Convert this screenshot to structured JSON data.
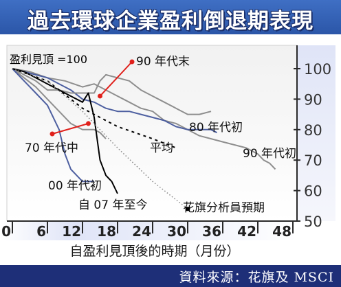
{
  "title": "過去環球企業盈利倒退期表現",
  "source": "資料來源：花旗及 MSCI",
  "chart_data": {
    "type": "line",
    "xlabel": "自盈利見頂後的時期（月份）",
    "ylabel": "",
    "y_note": "盈利見頂 =100",
    "xlim": [
      0,
      48
    ],
    "ylim": [
      50,
      100
    ],
    "xticks": [
      0,
      6,
      12,
      18,
      24,
      30,
      36,
      42,
      48
    ],
    "yticks": [
      50,
      60,
      70,
      80,
      90,
      100
    ],
    "grid": false,
    "series": [
      {
        "name": "90 年代初",
        "color": "#8e8e8e",
        "points": [
          [
            0,
            100
          ],
          [
            3,
            99
          ],
          [
            6,
            97
          ],
          [
            9,
            96
          ],
          [
            12,
            94
          ],
          [
            14,
            95
          ],
          [
            16,
            93
          ],
          [
            18,
            91
          ],
          [
            20,
            89
          ],
          [
            22,
            87
          ],
          [
            24,
            86
          ],
          [
            26,
            83
          ],
          [
            28,
            82
          ],
          [
            30,
            80
          ],
          [
            32,
            78
          ],
          [
            34,
            77
          ],
          [
            36,
            76
          ],
          [
            38,
            75
          ],
          [
            40,
            74
          ],
          [
            41,
            73
          ],
          [
            42,
            72
          ],
          [
            43,
            70
          ],
          [
            44,
            69
          ],
          [
            45,
            67
          ]
        ]
      },
      {
        "name": "80 年代初",
        "color": "#4d5fa0",
        "points": [
          [
            0,
            100
          ],
          [
            2,
            99
          ],
          [
            4,
            98
          ],
          [
            6,
            97
          ],
          [
            8,
            95
          ],
          [
            10,
            93
          ],
          [
            12,
            90
          ],
          [
            14,
            89
          ],
          [
            16,
            87
          ],
          [
            18,
            86
          ],
          [
            20,
            86
          ],
          [
            22,
            85
          ],
          [
            24,
            84
          ],
          [
            26,
            83
          ],
          [
            28,
            81
          ],
          [
            30,
            80
          ],
          [
            32,
            80
          ],
          [
            34,
            80
          ],
          [
            35,
            79
          ]
        ]
      },
      {
        "name": "90 年代末",
        "color": "#8e8e8e",
        "points": [
          [
            0,
            100
          ],
          [
            2,
            98
          ],
          [
            4,
            96
          ],
          [
            6,
            93
          ],
          [
            8,
            93
          ],
          [
            10,
            92
          ],
          [
            12,
            92
          ],
          [
            14,
            92
          ],
          [
            15,
            96
          ],
          [
            16,
            98
          ],
          [
            18,
            97
          ],
          [
            20,
            96
          ],
          [
            22,
            93
          ],
          [
            24,
            91
          ],
          [
            26,
            89
          ],
          [
            28,
            87
          ],
          [
            30,
            85
          ],
          [
            32,
            85
          ],
          [
            34,
            86
          ]
        ]
      },
      {
        "name": "70 年代中",
        "color": "#8e8e8e",
        "points": [
          [
            0,
            100
          ],
          [
            2,
            97
          ],
          [
            4,
            94
          ],
          [
            6,
            90
          ],
          [
            8,
            86
          ],
          [
            10,
            82
          ],
          [
            12,
            80
          ],
          [
            14,
            80
          ],
          [
            15,
            79
          ],
          [
            16,
            77
          ]
        ]
      },
      {
        "name": "00 年代初",
        "color": "#4d5fa0",
        "points": [
          [
            0,
            100
          ],
          [
            2,
            96
          ],
          [
            4,
            92
          ],
          [
            6,
            88
          ],
          [
            8,
            80
          ],
          [
            9,
            72
          ],
          [
            10,
            67
          ],
          [
            11,
            65
          ],
          [
            12,
            63
          ],
          [
            13,
            63
          ],
          [
            14,
            63
          ]
        ]
      },
      {
        "name": "自 07 年至今",
        "color": "#000000",
        "points": [
          [
            0,
            100
          ],
          [
            2,
            99
          ],
          [
            4,
            97
          ],
          [
            6,
            95
          ],
          [
            8,
            93
          ],
          [
            10,
            91
          ],
          [
            12,
            89
          ],
          [
            13,
            92
          ],
          [
            14,
            84
          ],
          [
            15,
            70
          ],
          [
            16,
            65
          ],
          [
            17,
            63
          ],
          [
            18,
            59
          ]
        ]
      },
      {
        "name": "平均",
        "color": "#000000",
        "dashed": true,
        "points": [
          [
            0,
            100
          ],
          [
            6,
            96
          ],
          [
            12,
            87
          ],
          [
            18,
            81
          ],
          [
            24,
            77
          ],
          [
            28,
            74
          ]
        ]
      },
      {
        "name": "花旗分析員預期",
        "color": "#888888",
        "dotted": true,
        "points": [
          [
            0,
            100
          ],
          [
            6,
            96
          ],
          [
            12,
            86
          ],
          [
            18,
            74
          ],
          [
            24,
            63
          ],
          [
            28,
            57
          ],
          [
            30,
            54
          ]
        ]
      }
    ],
    "annotations": [
      {
        "text": "90 年代末",
        "target": [
          15,
          91
        ]
      },
      {
        "text": "70 年代中",
        "target": [
          13,
          82
        ]
      },
      {
        "text": "花旗分析員預期",
        "target": [
          30,
          54
        ]
      }
    ]
  }
}
